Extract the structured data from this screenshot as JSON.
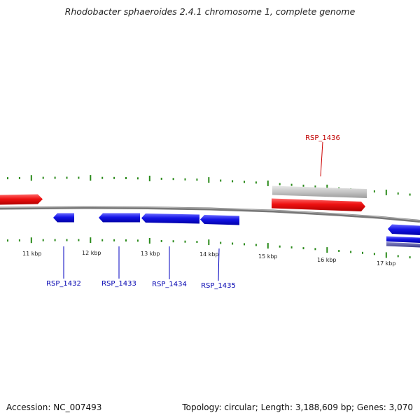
{
  "title": "Rhodobacter sphaeroides 2.4.1 chromosome 1, complete genome",
  "footer": {
    "accession_text": "Accession: NC_007493",
    "summary_text": "Topology: circular; Length: 3,188,609 bp; Genes: 3,070"
  },
  "colors": {
    "forward_gene": "#e8101a",
    "reverse_gene": "#1515e0",
    "selected_gene": "#bdbdbd",
    "ticks": "#2a8a1a",
    "backbone": "#888888"
  },
  "scale_labels": [
    "11 kbp",
    "12 kbp",
    "13 kbp",
    "14 kbp",
    "15 kbp",
    "16 kbp",
    "17 kbp"
  ],
  "genes": [
    {
      "name": "RSP_1432",
      "strand": "reverse",
      "labeled": true
    },
    {
      "name": "RSP_1433",
      "strand": "reverse",
      "labeled": true
    },
    {
      "name": "RSP_1434",
      "strand": "reverse",
      "labeled": true
    },
    {
      "name": "RSP_1435",
      "strand": "reverse",
      "labeled": true
    },
    {
      "name": "RSP_1436",
      "strand": "forward",
      "labeled": true
    }
  ]
}
